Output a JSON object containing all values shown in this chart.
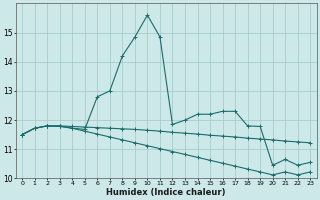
{
  "title": "",
  "xlabel": "Humidex (Indice chaleur)",
  "background_color": "#cce8e8",
  "grid_color": "#aacccc",
  "line_color": "#1a6b6b",
  "series1_x": [
    0,
    1,
    2,
    3,
    4,
    5,
    6,
    7,
    8,
    9,
    10,
    11,
    12,
    13,
    14,
    15,
    16,
    17,
    18,
    19,
    20,
    21,
    22,
    23
  ],
  "series1_y": [
    11.5,
    11.72,
    11.8,
    11.8,
    11.78,
    11.76,
    11.74,
    11.72,
    11.7,
    11.68,
    11.65,
    11.62,
    11.58,
    11.55,
    11.52,
    11.48,
    11.45,
    11.42,
    11.38,
    11.35,
    11.32,
    11.28,
    11.25,
    11.22
  ],
  "series2_x": [
    0,
    1,
    2,
    3,
    4,
    5,
    6,
    7,
    8,
    9,
    10,
    11,
    12,
    13,
    14,
    15,
    16,
    17,
    18,
    19,
    20,
    21,
    22,
    23
  ],
  "series2_y": [
    11.5,
    11.72,
    11.8,
    11.8,
    11.72,
    11.62,
    11.52,
    11.42,
    11.32,
    11.22,
    11.12,
    11.02,
    10.92,
    10.82,
    10.72,
    10.62,
    10.52,
    10.42,
    10.32,
    10.22,
    10.12,
    10.22,
    10.12,
    10.22
  ],
  "series3_x": [
    0,
    1,
    2,
    3,
    4,
    5,
    6,
    7,
    8,
    9,
    10,
    11,
    12,
    13,
    14,
    15,
    16,
    17,
    18,
    19,
    20,
    21,
    22,
    23
  ],
  "series3_y": [
    11.5,
    11.72,
    11.8,
    11.78,
    11.72,
    11.68,
    12.8,
    13.0,
    14.2,
    14.85,
    15.6,
    14.85,
    11.85,
    12.0,
    12.2,
    12.2,
    12.3,
    12.3,
    11.8,
    11.78,
    10.45,
    10.65,
    10.45,
    10.55
  ],
  "ylim": [
    10,
    16
  ],
  "xlim": [
    -0.5,
    23.5
  ],
  "yticks": [
    10,
    11,
    12,
    13,
    14,
    15
  ],
  "xticks": [
    0,
    1,
    2,
    3,
    4,
    5,
    6,
    7,
    8,
    9,
    10,
    11,
    12,
    13,
    14,
    15,
    16,
    17,
    18,
    19,
    20,
    21,
    22,
    23
  ]
}
